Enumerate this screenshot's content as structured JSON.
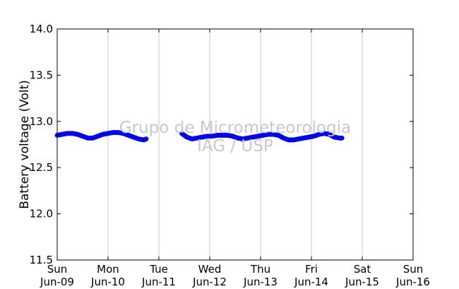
{
  "chart_data": {
    "type": "scatter",
    "title": "",
    "xlabel": "",
    "ylabel": "Battery voltage (Volt)",
    "ylim": [
      11.5,
      14.0
    ],
    "y_ticks": [
      "11.5",
      "12.0",
      "12.5",
      "13.0",
      "13.5",
      "14.0"
    ],
    "x_ticks": [
      {
        "day": "Sun",
        "date": "Jun-09"
      },
      {
        "day": "Mon",
        "date": "Jun-10"
      },
      {
        "day": "Tue",
        "date": "Jun-11"
      },
      {
        "day": "Wed",
        "date": "Jun-12"
      },
      {
        "day": "Thu",
        "date": "Jun-13"
      },
      {
        "day": "Fri",
        "date": "Jun-14"
      },
      {
        "day": "Sat",
        "date": "Jun-15"
      },
      {
        "day": "Sun",
        "date": "Jun-16"
      }
    ],
    "grid": "vertical",
    "marker_color": "#0000ff",
    "watermark": [
      "Grupo de Micrometeorologia",
      "IAG / USP"
    ],
    "series": [
      {
        "name": "",
        "points": [
          [
            0.0,
            12.85
          ],
          [
            0.1,
            12.86
          ],
          [
            0.2,
            12.87
          ],
          [
            0.3,
            12.87
          ],
          [
            0.4,
            12.86
          ],
          [
            0.5,
            12.84
          ],
          [
            0.6,
            12.82
          ],
          [
            0.7,
            12.82
          ],
          [
            0.8,
            12.84
          ],
          [
            0.9,
            12.86
          ],
          [
            1.0,
            12.87
          ],
          [
            1.1,
            12.88
          ],
          [
            1.2,
            12.88
          ],
          [
            1.3,
            12.87
          ],
          [
            1.4,
            12.85
          ],
          [
            1.5,
            12.83
          ],
          [
            1.6,
            12.81
          ],
          [
            1.7,
            12.8
          ],
          [
            1.75,
            12.81
          ]
        ]
      },
      {
        "name": "",
        "points": [
          [
            2.45,
            12.87
          ],
          [
            2.55,
            12.83
          ],
          [
            2.65,
            12.81
          ],
          [
            2.75,
            12.82
          ],
          [
            2.85,
            12.83
          ],
          [
            2.95,
            12.84
          ],
          [
            3.05,
            12.84
          ],
          [
            3.15,
            12.85
          ],
          [
            3.25,
            12.85
          ],
          [
            3.35,
            12.85
          ],
          [
            3.45,
            12.84
          ],
          [
            3.55,
            12.82
          ],
          [
            3.65,
            12.81
          ],
          [
            3.75,
            12.82
          ],
          [
            3.85,
            12.83
          ],
          [
            3.95,
            12.84
          ],
          [
            4.05,
            12.85
          ],
          [
            4.15,
            12.86
          ],
          [
            4.25,
            12.86
          ],
          [
            4.35,
            12.85
          ],
          [
            4.45,
            12.82
          ],
          [
            4.55,
            12.8
          ],
          [
            4.65,
            12.8
          ],
          [
            4.75,
            12.81
          ],
          [
            4.85,
            12.82
          ],
          [
            4.95,
            12.83
          ],
          [
            5.05,
            12.84
          ],
          [
            5.15,
            12.86
          ],
          [
            5.25,
            12.87
          ],
          [
            5.35,
            12.86
          ],
          [
            5.45,
            12.83
          ],
          [
            5.55,
            12.82
          ],
          [
            5.6,
            12.82
          ]
        ]
      }
    ]
  }
}
